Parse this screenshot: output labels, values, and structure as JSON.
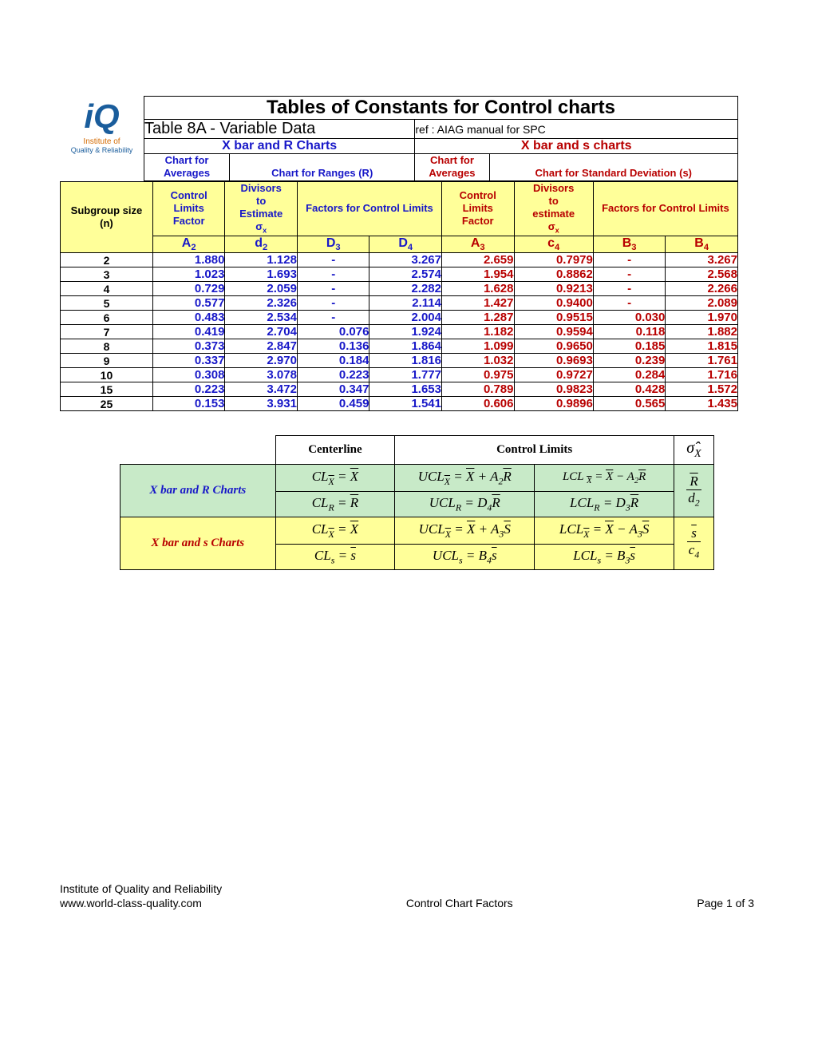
{
  "logo": {
    "main": "iQ",
    "line1": "Institute of",
    "line2": "Quality & Reliability"
  },
  "title": "Tables of Constants for Control charts",
  "subtitle_left": "Table 8A - Variable Data",
  "subtitle_right": "ref : AIAG manual for SPC",
  "section_xr": "X bar and R Charts",
  "section_xs": "X bar and s charts",
  "hdr_chart_avg": "Chart for Averages",
  "hdr_chart_ranges": "Chart for Ranges (R)",
  "hdr_chart_sd": "Chart for Standard Deviation (s)",
  "hdr_ctrl_lim_factor": "Control Limits Factor",
  "hdr_divisors_est": "Divisors to Estimate",
  "hdr_divisors_est2": "Divisors to estimate",
  "hdr_factors_cl": "Factors for Control Limits",
  "hdr_sigma_x": "σₓ",
  "hdr_subgroup": "Subgroup size (n)",
  "symbols": {
    "A2": "A₂",
    "d2": "d₂",
    "D3": "D₃",
    "D4": "D₄",
    "A3": "A₃",
    "c4": "c₄",
    "B3": "B₃",
    "B4": "B₄"
  },
  "rows": [
    {
      "n": "2",
      "A2": "1.880",
      "d2": "1.128",
      "D3": "-",
      "D4": "3.267",
      "A3": "2.659",
      "c4": "0.7979",
      "B3": "-",
      "B4": "3.267"
    },
    {
      "n": "3",
      "A2": "1.023",
      "d2": "1.693",
      "D3": "-",
      "D4": "2.574",
      "A3": "1.954",
      "c4": "0.8862",
      "B3": "-",
      "B4": "2.568"
    },
    {
      "n": "4",
      "A2": "0.729",
      "d2": "2.059",
      "D3": "-",
      "D4": "2.282",
      "A3": "1.628",
      "c4": "0.9213",
      "B3": "-",
      "B4": "2.266"
    },
    {
      "n": "5",
      "A2": "0.577",
      "d2": "2.326",
      "D3": "-",
      "D4": "2.114",
      "A3": "1.427",
      "c4": "0.9400",
      "B3": "-",
      "B4": "2.089"
    },
    {
      "n": "6",
      "A2": "0.483",
      "d2": "2.534",
      "D3": "-",
      "D4": "2.004",
      "A3": "1.287",
      "c4": "0.9515",
      "B3": "0.030",
      "B4": "1.970"
    },
    {
      "n": "7",
      "A2": "0.419",
      "d2": "2.704",
      "D3": "0.076",
      "D4": "1.924",
      "A3": "1.182",
      "c4": "0.9594",
      "B3": "0.118",
      "B4": "1.882"
    },
    {
      "n": "8",
      "A2": "0.373",
      "d2": "2.847",
      "D3": "0.136",
      "D4": "1.864",
      "A3": "1.099",
      "c4": "0.9650",
      "B3": "0.185",
      "B4": "1.815"
    },
    {
      "n": "9",
      "A2": "0.337",
      "d2": "2.970",
      "D3": "0.184",
      "D4": "1.816",
      "A3": "1.032",
      "c4": "0.9693",
      "B3": "0.239",
      "B4": "1.761"
    },
    {
      "n": "10",
      "A2": "0.308",
      "d2": "3.078",
      "D3": "0.223",
      "D4": "1.777",
      "A3": "0.975",
      "c4": "0.9727",
      "B3": "0.284",
      "B4": "1.716"
    },
    {
      "n": "15",
      "A2": "0.223",
      "d2": "3.472",
      "D3": "0.347",
      "D4": "1.653",
      "A3": "0.789",
      "c4": "0.9823",
      "B3": "0.428",
      "B4": "1.572"
    },
    {
      "n": "25",
      "A2": "0.153",
      "d2": "3.931",
      "D3": "0.459",
      "D4": "1.541",
      "A3": "0.606",
      "c4": "0.9896",
      "B3": "0.565",
      "B4": "1.435"
    }
  ],
  "formula": {
    "centerline": "Centerline",
    "control_limits": "Control Limits",
    "sigma_x_hat": "σ̂ₓ",
    "xr_label": "X bar and R Charts",
    "xs_label": "X bar and s Charts"
  },
  "footer": {
    "org": "Institute of Quality and Reliability",
    "url": "www.world-class-quality.com",
    "center": "Control Chart Factors",
    "page": "Page 1 of 3"
  },
  "colors": {
    "blue": "#1818c8",
    "red": "#b80000",
    "yellow_bg": "#ffff99",
    "green_bg": "#c8eac8"
  }
}
